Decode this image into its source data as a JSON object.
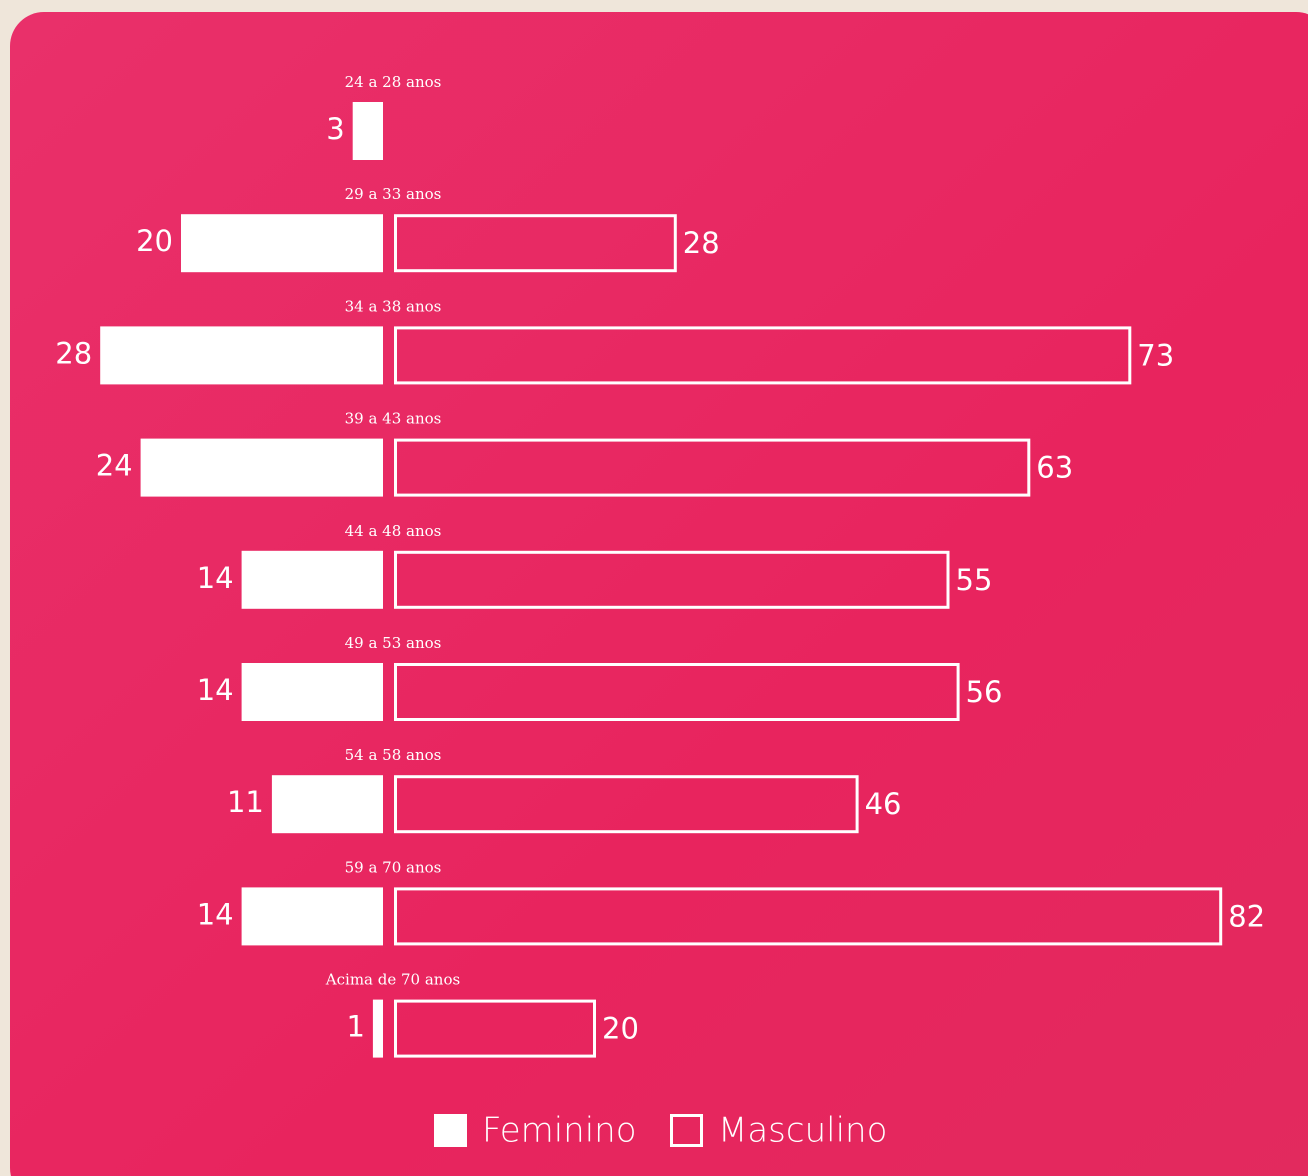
{
  "chart_data": {
    "type": "butterfly-bar",
    "categories": [
      "24 a 28 anos",
      "29 a 33 anos",
      "34 a 38 anos",
      "39 a 43 anos",
      "44 a 48 anos",
      "49 a 53 anos",
      "54 a 58 anos",
      "59 a 70 anos",
      "Acima de 70 anos"
    ],
    "series": [
      {
        "name": "Feminino",
        "color": "#ffffff",
        "style": "filled",
        "values": [
          3,
          20,
          28,
          24,
          14,
          14,
          11,
          14,
          1
        ]
      },
      {
        "name": "Masculino",
        "color": "#ffffff",
        "style": "outline",
        "values": [
          null,
          28,
          73,
          63,
          55,
          56,
          46,
          82,
          20
        ]
      }
    ]
  }
}
